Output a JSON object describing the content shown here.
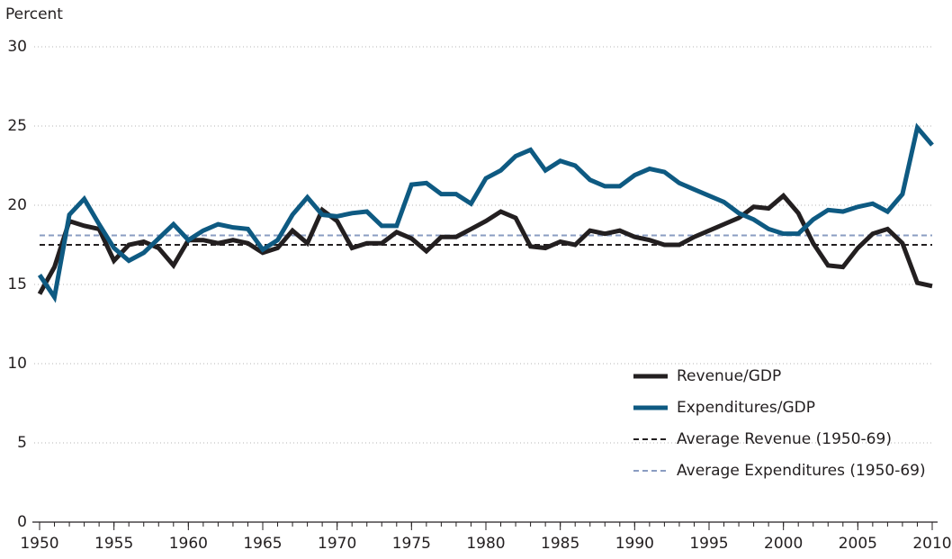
{
  "chart_data": {
    "type": "line",
    "y_axis_label": "Percent",
    "x": [
      1950,
      1951,
      1952,
      1953,
      1954,
      1955,
      1956,
      1957,
      1958,
      1959,
      1960,
      1961,
      1962,
      1963,
      1964,
      1965,
      1966,
      1967,
      1968,
      1969,
      1970,
      1971,
      1972,
      1973,
      1974,
      1975,
      1976,
      1977,
      1978,
      1979,
      1980,
      1981,
      1982,
      1983,
      1984,
      1985,
      1986,
      1987,
      1988,
      1989,
      1990,
      1991,
      1992,
      1993,
      1994,
      1995,
      1996,
      1997,
      1998,
      1999,
      2000,
      2001,
      2002,
      2003,
      2004,
      2005,
      2006,
      2007,
      2008,
      2009,
      2010
    ],
    "series": [
      {
        "name": "Revenue/GDP",
        "color": "#231f20",
        "values": [
          14.4,
          16.1,
          19.0,
          18.7,
          18.5,
          16.5,
          17.5,
          17.7,
          17.3,
          16.2,
          17.8,
          17.8,
          17.6,
          17.8,
          17.6,
          17.0,
          17.3,
          18.4,
          17.6,
          19.7,
          19.0,
          17.3,
          17.6,
          17.6,
          18.3,
          17.9,
          17.1,
          18.0,
          18.0,
          18.5,
          19.0,
          19.6,
          19.2,
          17.4,
          17.3,
          17.7,
          17.5,
          18.4,
          18.2,
          18.4,
          18.0,
          17.8,
          17.5,
          17.5,
          18.0,
          18.4,
          18.8,
          19.2,
          19.9,
          19.8,
          20.6,
          19.5,
          17.6,
          16.2,
          16.1,
          17.3,
          18.2,
          18.5,
          17.6,
          15.1,
          14.9
        ]
      },
      {
        "name": "Expenditures/GDP",
        "color": "#0e5a82",
        "values": [
          15.6,
          14.2,
          19.4,
          20.4,
          18.8,
          17.3,
          16.5,
          17.0,
          17.9,
          18.8,
          17.8,
          18.4,
          18.8,
          18.6,
          18.5,
          17.2,
          17.8,
          19.4,
          20.5,
          19.4,
          19.3,
          19.5,
          19.6,
          18.7,
          18.7,
          21.3,
          21.4,
          20.7,
          20.7,
          20.1,
          21.7,
          22.2,
          23.1,
          23.5,
          22.2,
          22.8,
          22.5,
          21.6,
          21.2,
          21.2,
          21.9,
          22.3,
          22.1,
          21.4,
          21.0,
          20.6,
          20.2,
          19.5,
          19.1,
          18.5,
          18.2,
          18.2,
          19.1,
          19.7,
          19.6,
          19.9,
          20.1,
          19.6,
          20.7,
          24.9,
          23.8
        ]
      }
    ],
    "reference_lines": [
      {
        "name": "Average Revenue (1950-69)",
        "color": "#231f20",
        "value": 17.5
      },
      {
        "name": "Average Expenditures (1950-69)",
        "color": "#8a9cc2",
        "value": 18.1
      }
    ],
    "xlim": [
      1950,
      2010
    ],
    "ylim": [
      0,
      30
    ],
    "xticks": [
      1950,
      1955,
      1960,
      1965,
      1970,
      1975,
      1980,
      1985,
      1990,
      1995,
      2000,
      2005,
      2010
    ],
    "yticks": [
      0,
      5,
      10,
      15,
      20,
      25,
      30
    ],
    "grid": true,
    "legend": "lower right"
  }
}
